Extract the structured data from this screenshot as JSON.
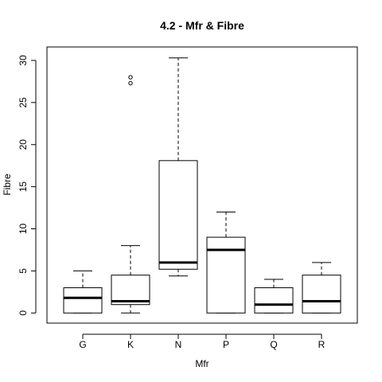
{
  "chart_data": {
    "type": "boxplot",
    "title": "4.2 - Mfr & Fibre",
    "xlabel": "Mfr",
    "ylabel": "Fibre",
    "ylim": [
      -1.2,
      31.6
    ],
    "yticks": [
      0,
      5,
      10,
      15,
      20,
      25,
      30
    ],
    "grid": false,
    "categories": [
      "G",
      "K",
      "N",
      "P",
      "Q",
      "R"
    ],
    "boxes": [
      {
        "category": "G",
        "whisker_low": 0,
        "q1": 0,
        "median": 1.8,
        "q3": 3,
        "whisker_high": 5,
        "outliers": []
      },
      {
        "category": "K",
        "whisker_low": 0,
        "q1": 1,
        "median": 1.4,
        "q3": 4.5,
        "whisker_high": 8,
        "outliers": [
          27.3,
          28
        ]
      },
      {
        "category": "N",
        "whisker_low": 4.4,
        "q1": 5.2,
        "median": 6,
        "q3": 18.1,
        "whisker_high": 30.3,
        "outliers": []
      },
      {
        "category": "P",
        "whisker_low": 0,
        "q1": 0,
        "median": 7.5,
        "q3": 9,
        "whisker_high": 12,
        "outliers": []
      },
      {
        "category": "Q",
        "whisker_low": 0,
        "q1": 0,
        "median": 1,
        "q3": 3,
        "whisker_high": 4,
        "outliers": []
      },
      {
        "category": "R",
        "whisker_low": 0,
        "q1": 0,
        "median": 1.4,
        "q3": 4.5,
        "whisker_high": 6,
        "outliers": []
      }
    ]
  }
}
